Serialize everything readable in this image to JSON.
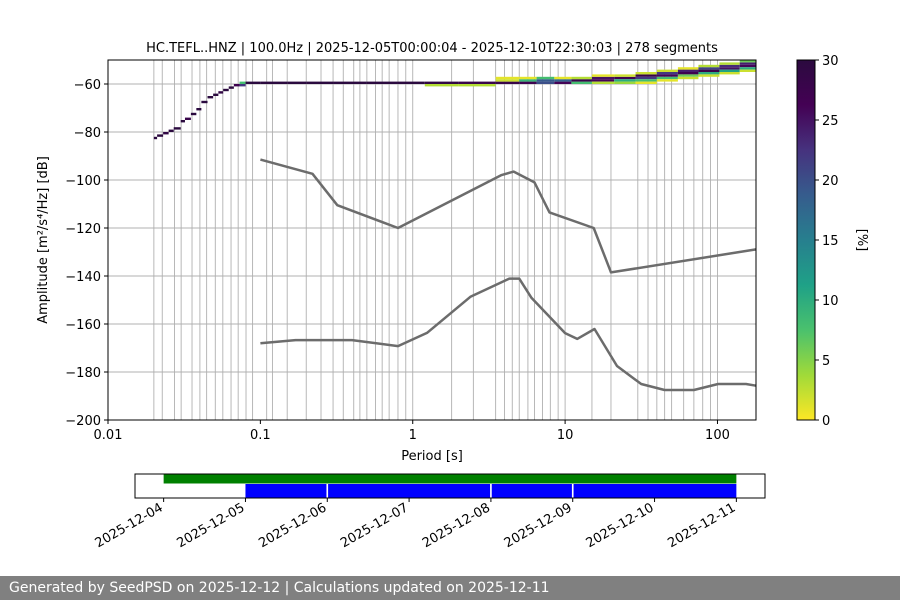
{
  "chart_data": {
    "type": "heatmap",
    "title": "HC.TEFL..HNZ | 100.0Hz | 2025-12-05T00:00:04 - 2025-12-10T22:30:03 | 278 segments",
    "xlabel": "Period [s]",
    "ylabel": "Amplitude [m²/s⁴/Hz] [dB]",
    "x_scale": "log",
    "xlim": [
      0.01,
      179
    ],
    "ylim": [
      -200,
      -50
    ],
    "x_ticks": [
      "0.01",
      "0.1",
      "1",
      "10",
      "100"
    ],
    "y_ticks": [
      "−60",
      "−80",
      "−100",
      "−120",
      "−140",
      "−160",
      "−180",
      "−200"
    ],
    "grid": true,
    "colorbar": {
      "label": "[%]",
      "range": [
        0,
        30
      ],
      "ticks": [
        "0",
        "5",
        "10",
        "15",
        "20",
        "25",
        "30"
      ],
      "colormap": "viridis_r"
    },
    "ppsd_cells": [
      {
        "period": 0.02,
        "db": -82.5,
        "pct": 30
      },
      {
        "period": 0.021,
        "db": -81.5,
        "pct": 30
      },
      {
        "period": 0.023,
        "db": -80.5,
        "pct": 29
      },
      {
        "period": 0.025,
        "db": -79.5,
        "pct": 30
      },
      {
        "period": 0.027,
        "db": -78.5,
        "pct": 30
      },
      {
        "period": 0.03,
        "db": -75.5,
        "pct": 30
      },
      {
        "period": 0.032,
        "db": -74.5,
        "pct": 28
      },
      {
        "period": 0.035,
        "db": -72.5,
        "pct": 30
      },
      {
        "period": 0.038,
        "db": -70.5,
        "pct": 30
      },
      {
        "period": 0.041,
        "db": -67.5,
        "pct": 30
      },
      {
        "period": 0.045,
        "db": -65.5,
        "pct": 30
      },
      {
        "period": 0.049,
        "db": -64.5,
        "pct": 30
      },
      {
        "period": 0.053,
        "db": -63.5,
        "pct": 29
      },
      {
        "period": 0.057,
        "db": -62.5,
        "pct": 30
      },
      {
        "period": 0.062,
        "db": -61.5,
        "pct": 30
      },
      {
        "period": 0.067,
        "db": -60.5,
        "pct": 27
      },
      {
        "period": 0.073,
        "db": -60.5,
        "pct": 22
      },
      {
        "period": 0.073,
        "db": -59.5,
        "pct": 8
      },
      {
        "period": 0.08,
        "db": -59.5,
        "pct": 30
      },
      {
        "period": 0.1,
        "db": -59.5,
        "pct": 30
      },
      {
        "period": 0.15,
        "db": -59.5,
        "pct": 30
      },
      {
        "period": 0.2,
        "db": -59.5,
        "pct": 30
      },
      {
        "period": 0.3,
        "db": -59.5,
        "pct": 30
      },
      {
        "period": 0.5,
        "db": -59.5,
        "pct": 30
      },
      {
        "period": 0.8,
        "db": -59.5,
        "pct": 30
      },
      {
        "period": 1.2,
        "db": -59.5,
        "pct": 29
      },
      {
        "period": 1.2,
        "db": -60.5,
        "pct": 3
      },
      {
        "period": 2.0,
        "db": -59.5,
        "pct": 28
      },
      {
        "period": 2.0,
        "db": -60.5,
        "pct": 3
      },
      {
        "period": 3.5,
        "db": -59.5,
        "pct": 28
      },
      {
        "period": 3.5,
        "db": -58.5,
        "pct": 2
      },
      {
        "period": 3.5,
        "db": -57.5,
        "pct": 1
      },
      {
        "period": 5.0,
        "db": -59.5,
        "pct": 27
      },
      {
        "period": 5.0,
        "db": -58.5,
        "pct": 9
      },
      {
        "period": 5.0,
        "db": -57.5,
        "pct": 1
      },
      {
        "period": 6.5,
        "db": -59.5,
        "pct": 20
      },
      {
        "period": 6.5,
        "db": -58.5,
        "pct": 19
      },
      {
        "period": 6.5,
        "db": -57.5,
        "pct": 8
      },
      {
        "period": 8.5,
        "db": -59.5,
        "pct": 26
      },
      {
        "period": 8.5,
        "db": -58.5,
        "pct": 18
      },
      {
        "period": 8.5,
        "db": -57.5,
        "pct": 1
      },
      {
        "period": 11,
        "db": -59.5,
        "pct": 8
      },
      {
        "period": 11,
        "db": -58.5,
        "pct": 28
      },
      {
        "period": 11,
        "db": -57.5,
        "pct": 3
      },
      {
        "period": 15,
        "db": -58.5,
        "pct": 26
      },
      {
        "period": 15,
        "db": -57.5,
        "pct": 25
      },
      {
        "period": 15,
        "db": -56.5,
        "pct": 1
      },
      {
        "period": 15,
        "db": -59.5,
        "pct": 3
      },
      {
        "period": 21,
        "db": -57.5,
        "pct": 27
      },
      {
        "period": 21,
        "db": -58.5,
        "pct": 10
      },
      {
        "period": 21,
        "db": -59.5,
        "pct": 4
      },
      {
        "period": 21,
        "db": -56.5,
        "pct": 2
      },
      {
        "period": 29,
        "db": -56.5,
        "pct": 28
      },
      {
        "period": 29,
        "db": -57.5,
        "pct": 22
      },
      {
        "period": 29,
        "db": -58.5,
        "pct": 8
      },
      {
        "period": 29,
        "db": -55.5,
        "pct": 2
      },
      {
        "period": 29,
        "db": -59.5,
        "pct": 1
      },
      {
        "period": 40,
        "db": -56.5,
        "pct": 26
      },
      {
        "period": 40,
        "db": -55.5,
        "pct": 22
      },
      {
        "period": 40,
        "db": -57.5,
        "pct": 8
      },
      {
        "period": 40,
        "db": -54.5,
        "pct": 2
      },
      {
        "period": 40,
        "db": -58.5,
        "pct": 1
      },
      {
        "period": 55,
        "db": -55.5,
        "pct": 27
      },
      {
        "period": 55,
        "db": -54.5,
        "pct": 24
      },
      {
        "period": 55,
        "db": -56.5,
        "pct": 6
      },
      {
        "period": 55,
        "db": -57.5,
        "pct": 2
      },
      {
        "period": 55,
        "db": -53.5,
        "pct": 1
      },
      {
        "period": 75,
        "db": -54.5,
        "pct": 28
      },
      {
        "period": 75,
        "db": -53.5,
        "pct": 21
      },
      {
        "period": 75,
        "db": -55.5,
        "pct": 10
      },
      {
        "period": 75,
        "db": -56.5,
        "pct": 2
      },
      {
        "period": 75,
        "db": -52.5,
        "pct": 3
      },
      {
        "period": 103,
        "db": -53.5,
        "pct": 25
      },
      {
        "period": 103,
        "db": -52.5,
        "pct": 23
      },
      {
        "period": 103,
        "db": -54.5,
        "pct": 11
      },
      {
        "period": 103,
        "db": -55.5,
        "pct": 2
      },
      {
        "period": 103,
        "db": -51.5,
        "pct": 3
      },
      {
        "period": 140,
        "db": -52.5,
        "pct": 26
      },
      {
        "period": 140,
        "db": -51.5,
        "pct": 24
      },
      {
        "period": 140,
        "db": -53.5,
        "pct": 10
      },
      {
        "period": 140,
        "db": -54.5,
        "pct": 2
      },
      {
        "period": 140,
        "db": -50.5,
        "pct": 6
      }
    ],
    "ppsd_period_bins": [
      0.02,
      0.021,
      0.023,
      0.025,
      0.027,
      0.03,
      0.032,
      0.035,
      0.038,
      0.041,
      0.045,
      0.049,
      0.053,
      0.057,
      0.062,
      0.067,
      0.073,
      0.08,
      0.1,
      0.15,
      0.2,
      0.3,
      0.5,
      0.8,
      1.2,
      2.0,
      3.5,
      5.0,
      6.5,
      8.5,
      11,
      15,
      21,
      29,
      40,
      55,
      75,
      103,
      140,
      179
    ],
    "noise_models": [
      {
        "points": [
          [
            0.1,
            -91.5
          ],
          [
            0.22,
            -97.4
          ],
          [
            0.32,
            -110.5
          ],
          [
            0.8,
            -120
          ],
          [
            3.8,
            -98
          ],
          [
            4.6,
            -96.5
          ],
          [
            6.3,
            -101
          ],
          [
            7.9,
            -113.5
          ],
          [
            15.4,
            -120
          ],
          [
            20,
            -138.5
          ],
          [
            179,
            -128.9
          ]
        ]
      },
      {
        "points": [
          [
            0.1,
            -168
          ],
          [
            0.17,
            -166.7
          ],
          [
            0.4,
            -166.7
          ],
          [
            0.8,
            -169.2
          ],
          [
            1.24,
            -163.7
          ],
          [
            2.4,
            -148.6
          ],
          [
            4.3,
            -141.1
          ],
          [
            5,
            -141.1
          ],
          [
            6,
            -149
          ],
          [
            10,
            -163.8
          ],
          [
            12,
            -166.2
          ],
          [
            15.6,
            -162.1
          ],
          [
            21.9,
            -177.5
          ],
          [
            31.6,
            -185
          ],
          [
            45,
            -187.5
          ],
          [
            70,
            -187.5
          ],
          [
            101,
            -185
          ],
          [
            154,
            -185
          ],
          [
            179,
            -185.7
          ]
        ]
      }
    ],
    "period_gridlines": [
      0.02,
      0.0227,
      0.0273,
      0.0302,
      0.0356,
      0.0401,
      0.0444,
      0.0506,
      0.0567,
      0.0642,
      0.0715,
      0.0805,
      0.0889,
      0.11,
      0.12,
      0.15,
      0.2,
      0.25,
      0.3,
      0.35,
      0.41,
      0.45,
      0.5,
      0.57,
      0.63,
      0.7,
      0.8,
      0.9,
      1.0,
      1.8,
      2.5,
      3.5,
      4.0,
      4.5,
      5.0,
      5.7,
      6.3,
      7.1,
      8.0,
      9.0,
      10,
      15,
      20,
      30,
      35,
      40,
      45,
      50,
      60,
      70,
      80,
      90,
      100
    ],
    "coverage": {
      "date_ticks": [
        "2025-12-04",
        "2025-12-05",
        "2025-12-06",
        "2025-12-07",
        "2025-12-08",
        "2025-12-09",
        "2025-12-10",
        "2025-12-11"
      ],
      "xlim": [
        -0.35,
        7.35
      ],
      "data_available": [
        [
          0.0,
          7.0
        ]
      ],
      "segments_used": [
        [
          1.0,
          1.99
        ],
        [
          2.01,
          3.99
        ],
        [
          4.01,
          4.99
        ],
        [
          5.01,
          7.0
        ]
      ]
    }
  },
  "colors": {
    "noise_model": "#6c6c6c",
    "grid": "#b0b0b0",
    "data_available": "#008000",
    "segments_used": "#0000ff",
    "footer_bg": "#808080"
  },
  "footer": {
    "text": "Generated by SeedPSD on 2025-12-12 | Calculations updated on 2025-12-11"
  }
}
